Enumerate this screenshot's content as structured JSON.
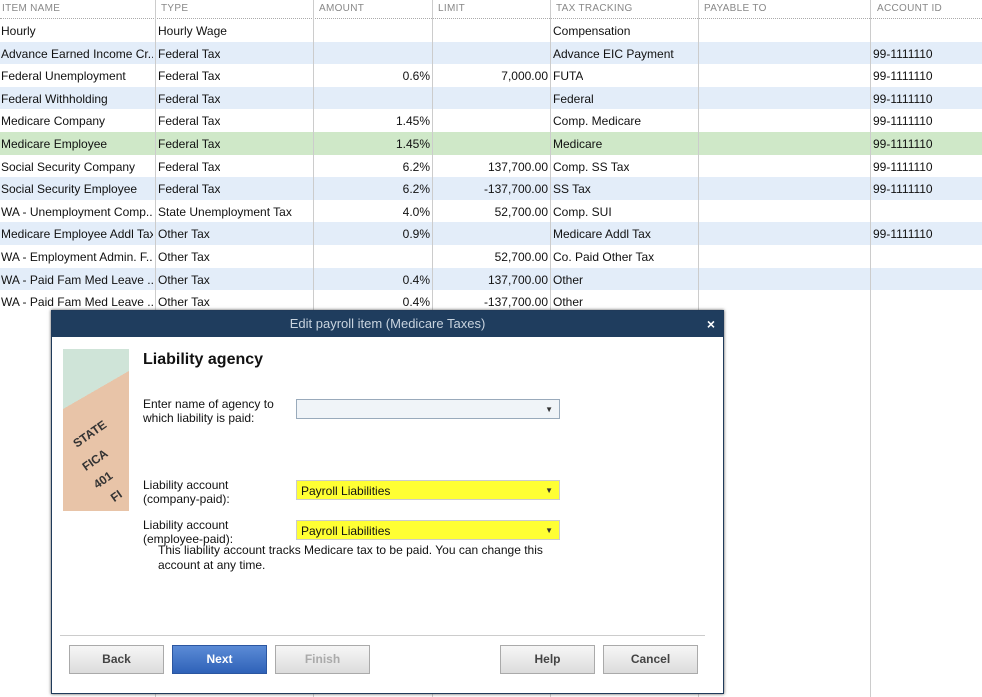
{
  "columns": [
    "ITEM NAME",
    "TYPE",
    "AMOUNT",
    "LIMIT",
    "TAX TRACKING",
    "PAYABLE TO",
    "ACCOUNT ID"
  ],
  "rows": [
    [
      "Hourly",
      "Hourly Wage",
      "",
      "",
      "Compensation",
      "",
      ""
    ],
    [
      "Advance Earned Income Cr...",
      "Federal Tax",
      "",
      "",
      "Advance EIC Payment",
      "",
      "99-1111110"
    ],
    [
      "Federal Unemployment",
      "Federal Tax",
      "0.6%",
      "7,000.00",
      "FUTA",
      "",
      "99-1111110"
    ],
    [
      "Federal Withholding",
      "Federal Tax",
      "",
      "",
      "Federal",
      "",
      "99-1111110"
    ],
    [
      "Medicare Company",
      "Federal Tax",
      "1.45%",
      "",
      "Comp. Medicare",
      "",
      "99-1111110"
    ],
    [
      "Medicare Employee",
      "Federal Tax",
      "1.45%",
      "",
      "Medicare",
      "",
      "99-1111110"
    ],
    [
      "Social Security Company",
      "Federal Tax",
      "6.2%",
      "137,700.00",
      "Comp. SS Tax",
      "",
      "99-1111110"
    ],
    [
      "Social Security Employee",
      "Federal Tax",
      "6.2%",
      "-137,700.00",
      "SS Tax",
      "",
      "99-1111110"
    ],
    [
      "WA - Unemployment Comp...",
      "State Unemployment Tax",
      "4.0%",
      "52,700.00",
      "Comp. SUI",
      "",
      ""
    ],
    [
      "Medicare Employee Addl Tax",
      "Other Tax",
      "0.9%",
      "",
      "Medicare Addl Tax",
      "",
      "99-1111110"
    ],
    [
      "WA - Employment Admin. F...",
      "Other Tax",
      "",
      "52,700.00",
      "Co. Paid Other Tax",
      "",
      ""
    ],
    [
      "WA - Paid Fam Med Leave ...",
      "Other Tax",
      "0.4%",
      "137,700.00",
      "Other",
      "",
      ""
    ],
    [
      "WA - Paid Fam Med Leave ...",
      "Other Tax",
      "0.4%",
      "-137,700.00",
      "Other",
      "",
      ""
    ]
  ],
  "selected_row": 5,
  "dialog": {
    "title": "Edit payroll item (Medicare Taxes)",
    "close": "×",
    "heading": "Liability agency",
    "agency_label": "Enter name of agency to which liability is paid:",
    "agency_value": "",
    "company_label": "Liability account (company-paid):",
    "company_value": "Payroll Liabilities",
    "employee_label": "Liability account (employee-paid):",
    "employee_value": "Payroll Liabilities",
    "note": "This liability account tracks Medicare tax to be paid. You can change this account at any time.",
    "image_words": [
      "STATE",
      "FICA",
      "401",
      "FI"
    ],
    "buttons": {
      "back": "Back",
      "next": "Next",
      "finish": "Finish",
      "help": "Help",
      "cancel": "Cancel"
    }
  }
}
